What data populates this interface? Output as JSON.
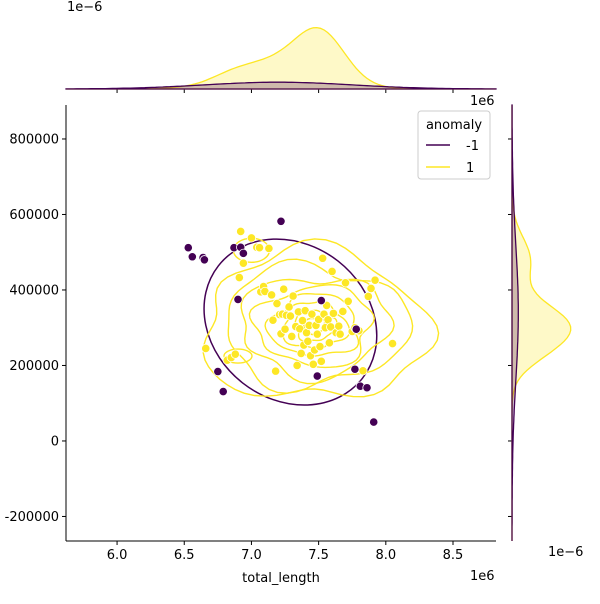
{
  "chart_data": {
    "type": "scatter",
    "title": "",
    "xlabel": "total_length",
    "ylabel": "",
    "x_offset_text": "1e6",
    "y_offset_text": "",
    "top_marginal_offset_text": "1e−6",
    "right_marginal_offset_text": "1e−6",
    "right_top_offset_text": "1e6",
    "xlim": [
      5.62,
      8.82
    ],
    "ylim": [
      -265000,
      890000
    ],
    "x_ticks": [
      6.0,
      6.5,
      7.0,
      7.5,
      8.0,
      8.5
    ],
    "x_tick_labels": [
      "6.0",
      "6.5",
      "7.0",
      "7.5",
      "8.0",
      "8.5"
    ],
    "y_ticks": [
      -200000,
      0,
      200000,
      400000,
      600000,
      800000
    ],
    "y_tick_labels": [
      "-200000",
      "0",
      "200000",
      "400000",
      "600000",
      "800000"
    ],
    "grid": false,
    "legend": {
      "title": "anomaly",
      "placement": "top-right",
      "entries": [
        {
          "label": "-1",
          "color": "#440154"
        },
        {
          "label": "1",
          "color": "#fde725"
        }
      ]
    },
    "series": [
      {
        "name": "-1",
        "color": "#440154",
        "points": [
          [
            6.53,
            512000
          ],
          [
            6.56,
            488000
          ],
          [
            6.64,
            486000
          ],
          [
            6.65,
            480000
          ],
          [
            6.75,
            184000
          ],
          [
            6.79,
            131000
          ],
          [
            6.87,
            512000
          ],
          [
            6.9,
            375000
          ],
          [
            6.92,
            513000
          ],
          [
            6.94,
            497000
          ],
          [
            7.22,
            582000
          ],
          [
            7.49,
            172000
          ],
          [
            7.52,
            372000
          ],
          [
            7.77,
            190000
          ],
          [
            7.78,
            296000
          ],
          [
            7.81,
            145000
          ],
          [
            7.86,
            141000
          ],
          [
            7.91,
            50000
          ]
        ],
        "kde_ellipse": {
          "cx": 7.29,
          "cy": 315000,
          "rx": 0.68,
          "ry": 205000,
          "angle_deg": 38
        }
      },
      {
        "name": "1",
        "color": "#fde725",
        "points": [
          [
            6.66,
            245000
          ],
          [
            6.82,
            214000
          ],
          [
            6.85,
            221000
          ],
          [
            6.88,
            230000
          ],
          [
            6.91,
            433000
          ],
          [
            6.92,
            555000
          ],
          [
            6.94,
            471000
          ],
          [
            7.0,
            538000
          ],
          [
            7.04,
            513000
          ],
          [
            7.06,
            512000
          ],
          [
            7.07,
            395000
          ],
          [
            7.09,
            409000
          ],
          [
            7.1,
            396000
          ],
          [
            7.13,
            510000
          ],
          [
            7.15,
            387000
          ],
          [
            7.16,
            320000
          ],
          [
            7.18,
            185000
          ],
          [
            7.19,
            364000
          ],
          [
            7.21,
            335000
          ],
          [
            7.22,
            284000
          ],
          [
            7.23,
            336000
          ],
          [
            7.24,
            402000
          ],
          [
            7.25,
            296000
          ],
          [
            7.26,
            333000
          ],
          [
            7.28,
            355000
          ],
          [
            7.29,
            331000
          ],
          [
            7.3,
            277000
          ],
          [
            7.31,
            384000
          ],
          [
            7.33,
            303000
          ],
          [
            7.34,
            200000
          ],
          [
            7.35,
            342000
          ],
          [
            7.36,
            297000
          ],
          [
            7.37,
            232000
          ],
          [
            7.38,
            319000
          ],
          [
            7.39,
            254000
          ],
          [
            7.4,
            345000
          ],
          [
            7.41,
            287000
          ],
          [
            7.42,
            264000
          ],
          [
            7.43,
            306000
          ],
          [
            7.44,
            226000
          ],
          [
            7.45,
            336000
          ],
          [
            7.46,
            203000
          ],
          [
            7.47,
            241000
          ],
          [
            7.48,
            306000
          ],
          [
            7.49,
            283000
          ],
          [
            7.5,
            322000
          ],
          [
            7.51,
            250000
          ],
          [
            7.52,
            211000
          ],
          [
            7.53,
            484000
          ],
          [
            7.54,
            336000
          ],
          [
            7.55,
            300000
          ],
          [
            7.56,
            359000
          ],
          [
            7.57,
            321000
          ],
          [
            7.58,
            260000
          ],
          [
            7.59,
            302000
          ],
          [
            7.6,
            449000
          ],
          [
            7.61,
            338000
          ],
          [
            7.63,
            287000
          ],
          [
            7.65,
            304000
          ],
          [
            7.66,
            283000
          ],
          [
            7.68,
            343000
          ],
          [
            7.7,
            419000
          ],
          [
            7.72,
            370000
          ],
          [
            7.75,
            290000
          ],
          [
            7.77,
            300000
          ],
          [
            7.8,
            292000
          ],
          [
            7.83,
            186000
          ],
          [
            7.87,
            383000
          ],
          [
            7.89,
            404000
          ],
          [
            7.92,
            426000
          ],
          [
            8.05,
            258000
          ]
        ]
      }
    ],
    "top_marginal": {
      "fill_colors": [
        "#440154",
        "#fde725"
      ]
    },
    "right_marginal": {
      "fill_colors": [
        "#440154",
        "#fde725"
      ]
    }
  }
}
